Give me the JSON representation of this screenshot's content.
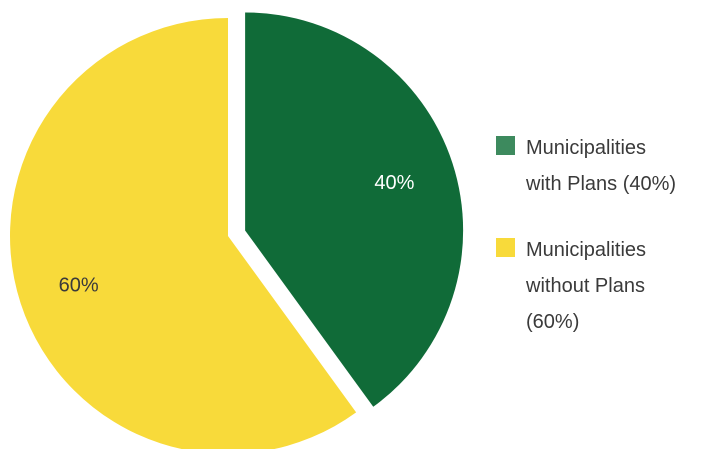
{
  "chart_data": {
    "type": "pie",
    "slices": [
      {
        "label": "40%",
        "value": 40,
        "color": "#106b38",
        "legend": "Municipalities\nwith Plans (40%)",
        "legend_color": "#3d8a5e",
        "label_color": "#ffffff",
        "exploded": true
      },
      {
        "label": "60%",
        "value": 60,
        "color": "#f8da3a",
        "legend": "Municipalities\nwithout Plans\n(60%)",
        "legend_color": "#f8da3a",
        "label_color": "#3a3a3a",
        "exploded": false
      }
    ],
    "legend_position": "right"
  }
}
